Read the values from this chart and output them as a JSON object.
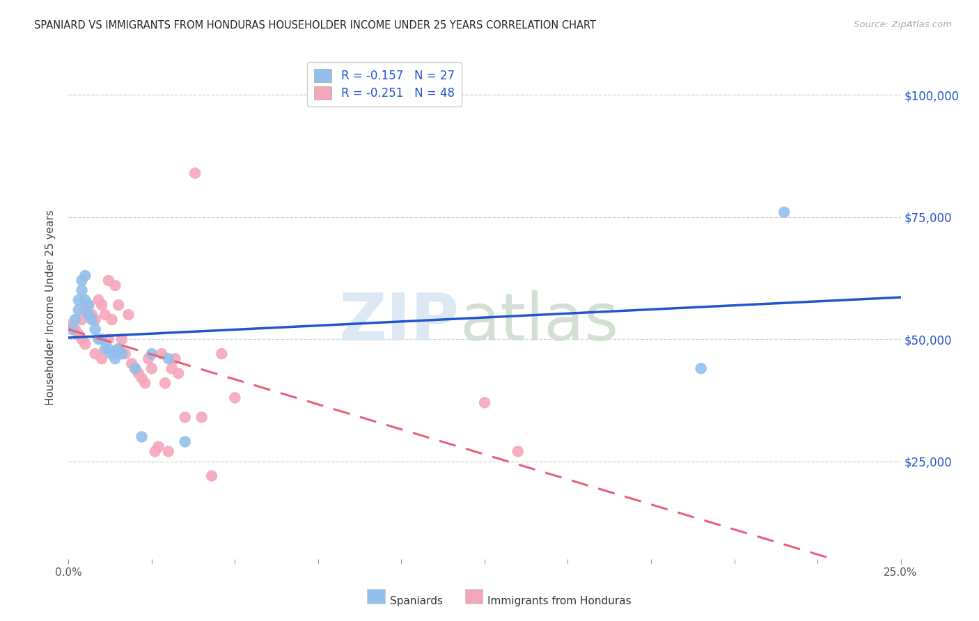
{
  "title": "SPANIARD VS IMMIGRANTS FROM HONDURAS HOUSEHOLDER INCOME UNDER 25 YEARS CORRELATION CHART",
  "source": "Source: ZipAtlas.com",
  "ylabel": "Householder Income Under 25 years",
  "ytick_labels": [
    "$25,000",
    "$50,000",
    "$75,000",
    "$100,000"
  ],
  "ytick_values": [
    25000,
    50000,
    75000,
    100000
  ],
  "xmin": 0.0,
  "xmax": 0.25,
  "ymin": 5000,
  "ymax": 108000,
  "legend_r1": "R = -0.157   N = 27",
  "legend_r2": "R = -0.251   N = 48",
  "legend_label1": "Spaniards",
  "legend_label2": "Immigrants from Honduras",
  "spaniard_color": "#92bfed",
  "honduras_color": "#f4a7bb",
  "blue_line_color": "#2255cc",
  "pink_line_color": "#e8607a",
  "spaniard_x": [
    0.001,
    0.002,
    0.003,
    0.003,
    0.004,
    0.004,
    0.005,
    0.005,
    0.006,
    0.006,
    0.007,
    0.008,
    0.009,
    0.01,
    0.011,
    0.012,
    0.013,
    0.014,
    0.015,
    0.016,
    0.02,
    0.022,
    0.025,
    0.03,
    0.035,
    0.19,
    0.215
  ],
  "spaniard_y": [
    52000,
    54000,
    56000,
    58000,
    60000,
    62000,
    63000,
    58000,
    55000,
    57000,
    54000,
    52000,
    50000,
    50000,
    48000,
    48000,
    47000,
    46000,
    48000,
    47000,
    44000,
    30000,
    47000,
    46000,
    29000,
    44000,
    76000
  ],
  "honduras_x": [
    0.001,
    0.002,
    0.003,
    0.004,
    0.004,
    0.005,
    0.005,
    0.006,
    0.006,
    0.007,
    0.008,
    0.008,
    0.009,
    0.01,
    0.01,
    0.011,
    0.012,
    0.012,
    0.013,
    0.014,
    0.015,
    0.015,
    0.016,
    0.017,
    0.018,
    0.019,
    0.02,
    0.021,
    0.022,
    0.023,
    0.024,
    0.025,
    0.026,
    0.027,
    0.028,
    0.029,
    0.03,
    0.031,
    0.032,
    0.033,
    0.035,
    0.038,
    0.04,
    0.043,
    0.046,
    0.05,
    0.125,
    0.135
  ],
  "honduras_y": [
    53000,
    52000,
    51000,
    54000,
    50000,
    56000,
    49000,
    55000,
    57000,
    55000,
    54000,
    47000,
    58000,
    57000,
    46000,
    55000,
    62000,
    50000,
    54000,
    61000,
    57000,
    48000,
    50000,
    47000,
    55000,
    45000,
    44000,
    43000,
    42000,
    41000,
    46000,
    44000,
    27000,
    28000,
    47000,
    41000,
    27000,
    44000,
    46000,
    43000,
    34000,
    84000,
    34000,
    22000,
    47000,
    38000,
    37000,
    27000
  ]
}
